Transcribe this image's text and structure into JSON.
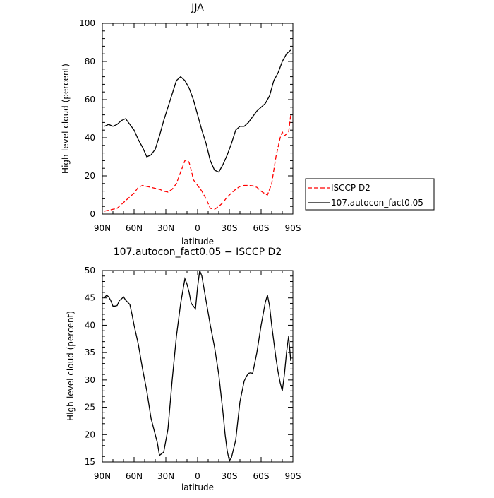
{
  "colors": {
    "isccp": "#ff0000",
    "model": "#000000",
    "frame": "#000000"
  },
  "chart_data": [
    {
      "type": "line",
      "title": "JJA",
      "xlabel": "latitude",
      "ylabel": "High-level cloud (percent)",
      "xlim": [
        90,
        -90
      ],
      "ylim": [
        0,
        100
      ],
      "xticks": [
        90,
        60,
        30,
        0,
        -30,
        -60,
        -90
      ],
      "xtick_labels": [
        "90N",
        "60N",
        "30N",
        "0",
        "30S",
        "60S",
        "90S"
      ],
      "yticks": [
        0,
        20,
        40,
        60,
        80,
        100
      ],
      "ytick_labels": [
        "0",
        "20",
        "40",
        "60",
        "80",
        "100"
      ],
      "legend": "outside-right",
      "series": [
        {
          "name": "ISCCP D2",
          "style": "dashed",
          "color": "#ff0000",
          "x": [
            88,
            84,
            80,
            76,
            72,
            68,
            64,
            60,
            56,
            52,
            48,
            44,
            40,
            36,
            32,
            28,
            24,
            20,
            16,
            12,
            10,
            8,
            6,
            4,
            0,
            -4,
            -8,
            -12,
            -16,
            -20,
            -24,
            -28,
            -32,
            -36,
            -40,
            -44,
            -48,
            -52,
            -56,
            -60,
            -64,
            -66,
            -70,
            -74,
            -78,
            -80,
            -82,
            -86,
            -88
          ],
          "y": [
            1.5,
            2,
            2.5,
            3,
            5,
            7,
            9,
            11,
            14,
            15,
            14.5,
            14,
            13.5,
            13,
            12,
            11.5,
            13,
            16,
            22,
            28,
            28.5,
            27,
            23,
            18,
            15,
            12,
            8,
            3,
            2.5,
            4,
            6,
            9,
            11,
            13,
            14.5,
            15,
            15,
            14.8,
            14,
            12,
            10.5,
            10,
            16,
            30,
            40,
            43,
            41,
            43,
            52
          ]
        },
        {
          "name": "107.autocon_fact0.05",
          "style": "solid",
          "color": "#000000",
          "x": [
            88,
            84,
            80,
            76,
            72,
            68,
            64,
            60,
            56,
            52,
            48,
            44,
            40,
            36,
            32,
            28,
            24,
            20,
            16,
            12,
            8,
            4,
            0,
            -4,
            -8,
            -12,
            -16,
            -20,
            -24,
            -28,
            -32,
            -36,
            -40,
            -44,
            -48,
            -52,
            -56,
            -60,
            -64,
            -68,
            -72,
            -76,
            -80,
            -84,
            -88
          ],
          "y": [
            46,
            47,
            46,
            47,
            49,
            50,
            47,
            44,
            39,
            35,
            30,
            31,
            34,
            41,
            49,
            56,
            63,
            70,
            72,
            70,
            66,
            60,
            52,
            44,
            37,
            28,
            23,
            22,
            26,
            31,
            37,
            44,
            46,
            46,
            48,
            51,
            54,
            56,
            58,
            62,
            70,
            74,
            80,
            84,
            86
          ]
        }
      ]
    },
    {
      "type": "line",
      "title": "107.autocon_fact0.05 − ISCCP D2",
      "xlabel": "latitude",
      "ylabel": "High-level cloud (percent)",
      "xlim": [
        90,
        -90
      ],
      "ylim": [
        15,
        50
      ],
      "xticks": [
        90,
        60,
        30,
        0,
        -30,
        -60,
        -90
      ],
      "xtick_labels": [
        "90N",
        "60N",
        "30N",
        "0",
        "30S",
        "60S",
        "90S"
      ],
      "yticks": [
        15,
        20,
        25,
        30,
        35,
        40,
        45,
        50
      ],
      "ytick_labels": [
        "15",
        "20",
        "25",
        "30",
        "35",
        "40",
        "45",
        "50"
      ],
      "series": [
        {
          "style": "solid",
          "color": "#000000",
          "x": [
            88,
            86,
            84,
            82,
            80,
            78,
            76,
            74,
            72,
            70,
            68,
            66,
            64,
            62,
            60,
            56,
            52,
            48,
            44,
            40,
            38,
            36,
            32,
            28,
            24,
            20,
            16,
            12,
            10,
            8,
            6,
            4,
            2,
            0,
            -2,
            -4,
            -8,
            -12,
            -16,
            -20,
            -24,
            -26,
            -28,
            -30,
            -32,
            -36,
            -40,
            -44,
            -46,
            -48,
            -50,
            -52,
            -56,
            -60,
            -64,
            -66,
            -68,
            -70,
            -72,
            -74,
            -76,
            -78,
            -80,
            -82,
            -84,
            -86,
            -88
          ],
          "y": [
            45,
            45.5,
            45.2,
            44.5,
            43.5,
            43.5,
            43.6,
            44.5,
            44.8,
            45.2,
            44.6,
            44.2,
            43.8,
            42,
            40,
            36.5,
            32,
            28,
            23,
            20,
            18.5,
            16.2,
            16.8,
            21,
            30,
            38,
            44,
            48.5,
            47.5,
            46,
            44,
            43.5,
            43,
            47,
            50,
            49,
            44.5,
            40,
            36,
            31,
            24,
            20,
            17,
            15.2,
            15.8,
            19,
            26,
            29.8,
            30.6,
            31.2,
            31.3,
            31.2,
            35,
            40,
            44.2,
            45.5,
            43.5,
            40,
            37,
            34,
            31.5,
            29.5,
            28,
            31,
            35,
            38,
            33.5
          ]
        }
      ]
    }
  ]
}
